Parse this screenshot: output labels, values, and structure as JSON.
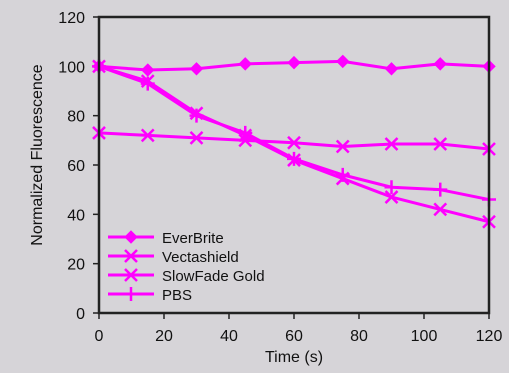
{
  "chart_data": {
    "type": "line",
    "title": "",
    "xlabel": "Time (s)",
    "ylabel": "Normalized Fluorescence",
    "xlim": [
      0,
      120
    ],
    "ylim": [
      0,
      120
    ],
    "xticks": [
      0,
      20,
      40,
      60,
      80,
      100,
      120
    ],
    "yticks": [
      0,
      20,
      40,
      60,
      80,
      100,
      120
    ],
    "grid": false,
    "legend_position": "bottom-left",
    "line_color": "#ff00ff",
    "x": [
      0,
      15,
      30,
      45,
      60,
      75,
      90,
      105,
      120
    ],
    "series": [
      {
        "name": "EverBrite",
        "marker": "diamond",
        "values": [
          100,
          98.5,
          99,
          101,
          101.5,
          102,
          99,
          101,
          100
        ]
      },
      {
        "name": "Vectashield",
        "marker": "x",
        "values": [
          100,
          94,
          81,
          72,
          62,
          54.5,
          47,
          42,
          37
        ]
      },
      {
        "name": "SlowFade Gold",
        "marker": "x",
        "values": [
          73,
          72,
          71,
          70,
          69,
          67.5,
          68.5,
          68.5,
          66.5
        ]
      },
      {
        "name": "PBS",
        "marker": "plus",
        "values": [
          100,
          93,
          80,
          73,
          62.5,
          56,
          51,
          50,
          46
        ]
      }
    ]
  }
}
